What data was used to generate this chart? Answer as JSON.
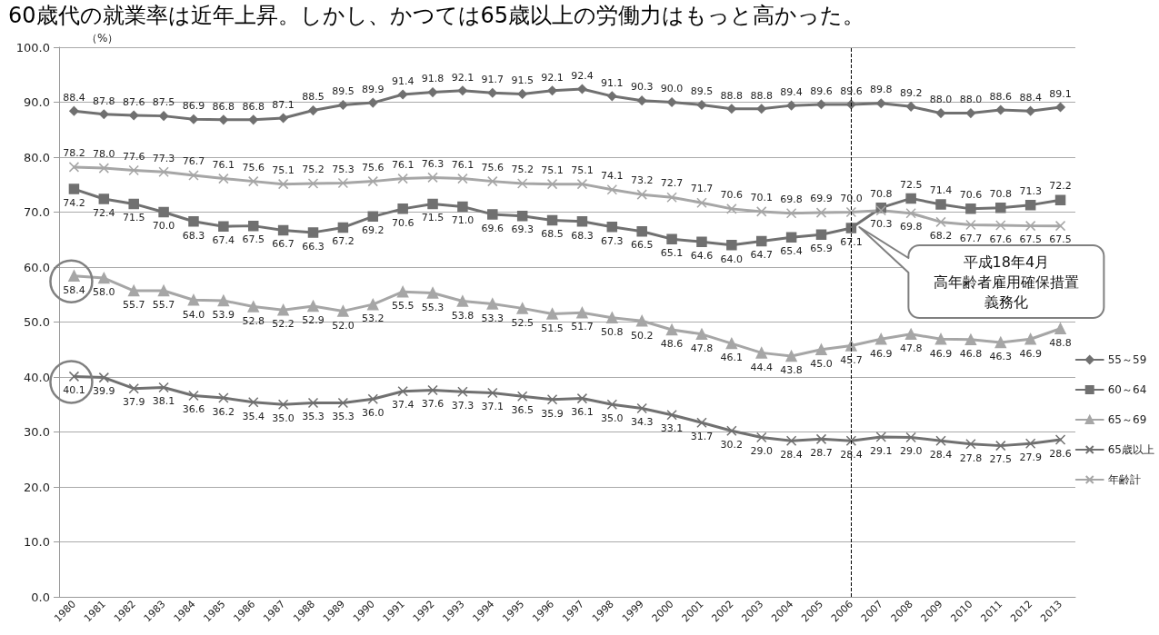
{
  "chart_data": {
    "type": "line",
    "title": "60歳代の就業率は近年上昇。しかし、かつては65歳以上の労働力はもっと高かった。",
    "ylabel": "（%）",
    "categories": [
      "1980",
      "1981",
      "1982",
      "1983",
      "1984",
      "1985",
      "1986",
      "1987",
      "1988",
      "1989",
      "1990",
      "1991",
      "1992",
      "1993",
      "1994",
      "1995",
      "1996",
      "1997",
      "1998",
      "1999",
      "2000",
      "2001",
      "2002",
      "2003",
      "2004",
      "2005",
      "2006",
      "2007",
      "2008",
      "2009",
      "2010",
      "2011",
      "2012",
      "2013"
    ],
    "series": [
      {
        "name": "55～59",
        "color": "#707070",
        "marker": "diamond",
        "values": [
          88.4,
          87.8,
          87.6,
          87.5,
          86.9,
          86.8,
          86.8,
          87.1,
          88.5,
          89.5,
          89.9,
          91.4,
          91.8,
          92.1,
          91.7,
          91.5,
          92.1,
          92.4,
          91.1,
          90.3,
          90.0,
          89.5,
          88.8,
          88.8,
          89.4,
          89.6,
          89.6,
          89.8,
          89.2,
          88.0,
          88.0,
          88.6,
          88.4,
          89.1
        ],
        "value_labels": [
          "88.4",
          "87.8",
          "87.6",
          "87.5",
          "86.9",
          "86.8",
          "86.8",
          "87.1",
          "88.5",
          "89.5",
          "89.9",
          "91.4",
          "91.8",
          "92.1",
          "91.7",
          "91.5",
          "92.1",
          "92.4",
          "91.1",
          "90.3",
          "90.0",
          "89.5",
          "88.8",
          "88.8",
          "89.4",
          "89.6",
          "89.6",
          "89.8",
          "89.2",
          "88.0",
          "88.0",
          "88.6",
          "88.4",
          "89.1"
        ]
      },
      {
        "name": "60～64",
        "color": "#707070",
        "marker": "square",
        "values": [
          74.2,
          72.4,
          71.5,
          70.0,
          68.3,
          67.4,
          67.5,
          66.7,
          66.3,
          67.2,
          69.2,
          70.6,
          71.5,
          71.0,
          69.6,
          69.3,
          68.5,
          68.3,
          67.3,
          66.5,
          65.1,
          64.6,
          64.0,
          64.7,
          65.4,
          65.9,
          67.1,
          70.8,
          72.5,
          71.4,
          70.6,
          70.8,
          71.3,
          72.2
        ],
        "value_labels": [
          "74.2",
          "72.4",
          "71.5",
          "70.0",
          "68.3",
          "67.4",
          "67.5",
          "66.7",
          "66.3",
          "67.2",
          "69.2",
          "70.6",
          "71.5",
          "71.0",
          "69.6",
          "69.3",
          "68.5",
          "68.3",
          "67.3",
          "66.5",
          "65.1",
          "64.6",
          "64.0",
          "64.7",
          "65.4",
          "65.9",
          "67.1",
          "70.8",
          "72.5",
          "71.4",
          "70.6",
          "70.8",
          "71.3",
          "72.2"
        ]
      },
      {
        "name": "65～69",
        "color": "#a6a6a6",
        "marker": "triangle",
        "values": [
          58.4,
          58.0,
          55.7,
          55.7,
          54.0,
          53.9,
          52.8,
          52.2,
          52.9,
          52.0,
          53.2,
          55.5,
          55.3,
          53.8,
          53.3,
          52.5,
          51.5,
          51.7,
          50.8,
          50.2,
          48.6,
          47.8,
          46.1,
          44.4,
          43.8,
          45.0,
          45.7,
          46.9,
          47.8,
          46.9,
          46.8,
          46.3,
          46.9,
          48.8
        ],
        "value_labels": [
          "58.4",
          "58.0",
          "55.7",
          "55.7",
          "54.0",
          "53.9",
          "52.8",
          "52.2",
          "52.9",
          "52.0",
          "53.2",
          "55.5",
          "55.3",
          "53.8",
          "53.3",
          "52.5",
          "51.5",
          "51.7",
          "50.8",
          "50.2",
          "48.6",
          "47.8",
          "46.1",
          "44.4",
          "43.8",
          "45.0",
          "45.7",
          "46.9",
          "47.8",
          "46.9",
          "46.8",
          "46.3",
          "46.9",
          "48.8"
        ]
      },
      {
        "name": "65歳以上",
        "color": "#707070",
        "marker": "cross",
        "values": [
          40.1,
          39.9,
          37.9,
          38.1,
          36.6,
          36.2,
          35.4,
          35.0,
          35.3,
          35.3,
          36.0,
          37.4,
          37.6,
          37.3,
          37.1,
          36.5,
          35.9,
          36.1,
          35.0,
          34.3,
          33.1,
          31.7,
          30.2,
          29.0,
          28.4,
          28.7,
          28.4,
          29.1,
          29.0,
          28.4,
          27.8,
          27.5,
          27.9,
          28.6
        ],
        "value_labels": [
          "40.1",
          "39.9",
          "37.9",
          "38.1",
          "36.6",
          "36.2",
          "35.4",
          "35.0",
          "35.3",
          "35.3",
          "36.0",
          "37.4",
          "37.6",
          "37.3",
          "37.1",
          "36.5",
          "35.9",
          "36.1",
          "35.0",
          "34.3",
          "33.1",
          "31.7",
          "30.2",
          "29.0",
          "28.4",
          "28.7",
          "28.4",
          "29.1",
          "29.0",
          "28.4",
          "27.8",
          "27.5",
          "27.9",
          "28.6"
        ]
      },
      {
        "name": "年齢計",
        "color": "#a6a6a6",
        "marker": "cross",
        "values": [
          78.2,
          78.0,
          77.6,
          77.3,
          76.7,
          76.1,
          75.6,
          75.1,
          75.2,
          75.3,
          75.6,
          76.1,
          76.3,
          76.1,
          75.6,
          75.2,
          75.1,
          75.1,
          74.1,
          73.2,
          72.7,
          71.7,
          70.6,
          70.1,
          69.8,
          69.9,
          70.0,
          70.3,
          69.8,
          68.2,
          67.7,
          67.6,
          67.5,
          67.5
        ],
        "value_labels": [
          "78.2",
          "78.0",
          "77.6",
          "77.3",
          "76.7",
          "76.1",
          "75.6",
          "75.1",
          "75.2",
          "75.3",
          "75.6",
          "76.1",
          "76.3",
          "76.1",
          "75.6",
          "75.2",
          "75.1",
          "75.1",
          "74.1",
          "73.2",
          "72.7",
          "71.7",
          "70.6",
          "70.1",
          "69.8",
          "69.9",
          "70.0",
          "70.3",
          "69.8",
          "68.2",
          "67.7",
          "67.6",
          "67.5",
          "67.5"
        ]
      }
    ],
    "ylim": [
      0,
      100
    ],
    "yticks": [
      {
        "value": 0,
        "label": "0.0"
      },
      {
        "value": 10,
        "label": "10.0"
      },
      {
        "value": 20,
        "label": "20.0"
      },
      {
        "value": 30,
        "label": "30.0"
      },
      {
        "value": 40,
        "label": "40.0"
      },
      {
        "value": 50,
        "label": "50.0"
      },
      {
        "value": 60,
        "label": "60.0"
      },
      {
        "value": 70,
        "label": "70.0"
      },
      {
        "value": 80,
        "label": "80.0"
      },
      {
        "value": 90,
        "label": "90.0"
      },
      {
        "value": 100,
        "label": "100.0"
      }
    ],
    "ref_lines": [
      {
        "axis": "x",
        "value": "2006",
        "color": "#000000",
        "line_style": "dashed"
      }
    ],
    "annotations": [
      "平成18年4月",
      "高年齢者雇用確保措置義務化"
    ],
    "grid": "y",
    "legend": "right",
    "line_style": "solid"
  }
}
